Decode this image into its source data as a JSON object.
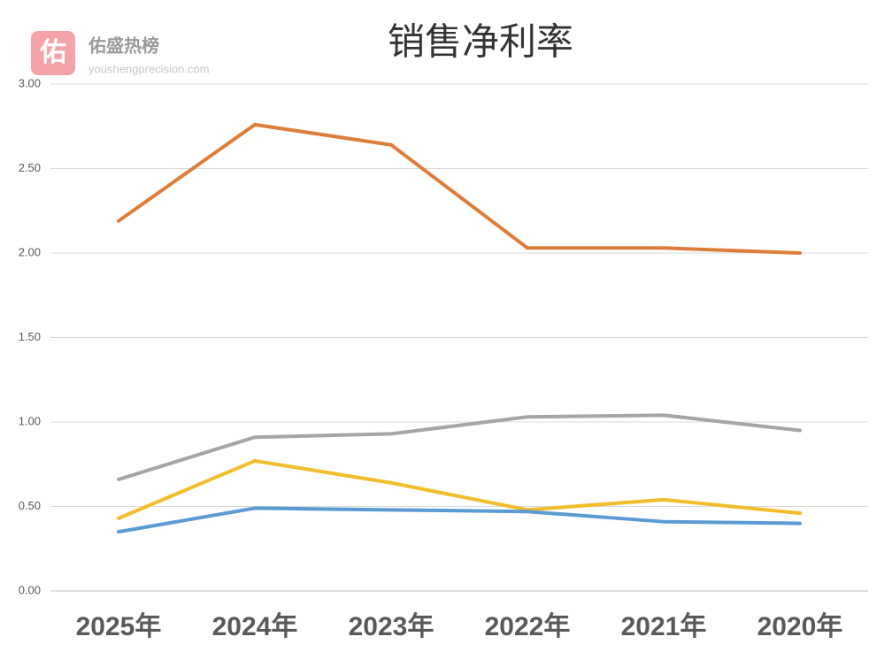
{
  "watermark": {
    "icon": "佑",
    "name": "佑盛热榜",
    "url": "youshengprecision.com"
  },
  "chart_data": {
    "type": "line",
    "title": "销售净利率",
    "categories": [
      "2025年",
      "2024年",
      "2023年",
      "2022年",
      "2021年",
      "2020年"
    ],
    "series": [
      {
        "color": "#dd7d3a",
        "values": [
          2.19,
          2.76,
          2.64,
          2.03,
          2.03,
          2.0
        ]
      },
      {
        "color": "#a5a5a5",
        "values": [
          0.66,
          0.91,
          0.93,
          1.03,
          1.04,
          0.95
        ]
      },
      {
        "color": "#f2bc2a",
        "values": [
          0.43,
          0.77,
          0.64,
          0.48,
          0.54,
          0.46
        ]
      },
      {
        "color": "#5b9bd5",
        "values": [
          0.35,
          0.49,
          0.48,
          0.47,
          0.41,
          0.4
        ]
      }
    ],
    "ylim": [
      0,
      3
    ],
    "yticks": [
      {
        "value": 0,
        "label": "0.00"
      },
      {
        "value": 0.5,
        "label": "0.50"
      },
      {
        "value": 1,
        "label": "1.00"
      },
      {
        "value": 1.5,
        "label": "1.50"
      },
      {
        "value": 2,
        "label": "2.00"
      },
      {
        "value": 2.5,
        "label": "2.50"
      },
      {
        "value": 3,
        "label": "3.00"
      }
    ],
    "grid": true
  }
}
